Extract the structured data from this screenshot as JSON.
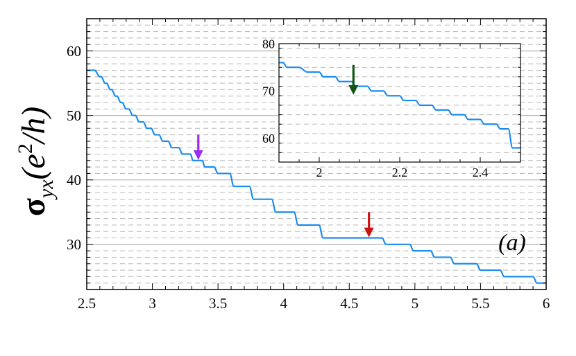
{
  "chart_data": [
    {
      "type": "line",
      "panel_label": "(a)",
      "xlabel": "",
      "ylabel": "σyx(e²/h)",
      "ylabel_parts": {
        "sigma": "σ",
        "sub": "yx",
        "open": "(e",
        "sup": "2",
        "close": "/h)"
      },
      "xlim": [
        2.5,
        6.0
      ],
      "ylim": [
        23,
        65
      ],
      "xticks": [
        2.5,
        3,
        3.5,
        4,
        4.5,
        5,
        5.5,
        6
      ],
      "xtick_labels": [
        "2.5",
        "3",
        "3.5",
        "4",
        "4.5",
        "5",
        "5.5",
        "6"
      ],
      "yticks": [
        30,
        40,
        50,
        60
      ],
      "ytick_labels": [
        "30",
        "40",
        "50",
        "60"
      ],
      "solid_gridlines": [
        30,
        40,
        50,
        60
      ],
      "dashed_gridlines_every": 1,
      "line_color": "#1a8cf0",
      "series": [
        {
          "x": [
            2.5,
            2.58,
            2.62,
            2.66,
            2.7,
            2.74,
            2.78,
            2.83,
            2.88,
            2.94,
            3.0,
            3.06,
            3.13,
            3.2,
            3.28,
            3.36,
            3.45,
            3.54,
            3.65,
            3.8,
            3.95,
            4.1,
            4.27,
            4.46,
            4.66,
            4.86,
            5.08,
            5.3,
            5.55,
            5.8,
            6.0
          ],
          "y": [
            57,
            56,
            55,
            54,
            53,
            52,
            51,
            50,
            49,
            48,
            47,
            46,
            45,
            44,
            43,
            42,
            41,
            40,
            39,
            38,
            37,
            36,
            35,
            34,
            33,
            32,
            31,
            30,
            29,
            28,
            27
          ]
        }
      ],
      "plateaus": [
        [
          2.5,
          2.56,
          57
        ],
        [
          2.6,
          2.61,
          56
        ],
        [
          2.64,
          2.65,
          55
        ],
        [
          2.68,
          2.69,
          54
        ],
        [
          2.72,
          2.73,
          53
        ],
        [
          2.76,
          2.77,
          52
        ],
        [
          2.8,
          2.82,
          51
        ],
        [
          2.85,
          2.87,
          50
        ],
        [
          2.9,
          2.93,
          49
        ],
        [
          2.96,
          2.99,
          48
        ],
        [
          3.02,
          3.05,
          47
        ],
        [
          3.08,
          3.12,
          46
        ],
        [
          3.15,
          3.2,
          45
        ],
        [
          3.23,
          3.29,
          44
        ],
        [
          3.31,
          3.38,
          43
        ],
        [
          3.4,
          3.47,
          42
        ],
        [
          3.5,
          3.59,
          41
        ],
        [
          3.62,
          3.74,
          39
        ],
        [
          3.77,
          3.91,
          37
        ],
        [
          3.94,
          4.08,
          35
        ],
        [
          4.11,
          4.27,
          33
        ],
        [
          4.3,
          4.52,
          31
        ],
        [
          4.55,
          4.75,
          31
        ],
        [
          4.78,
          4.96,
          30
        ],
        [
          4.99,
          5.12,
          29
        ],
        [
          5.15,
          5.27,
          28
        ],
        [
          5.3,
          5.47,
          27
        ],
        [
          5.5,
          5.65,
          26
        ],
        [
          5.68,
          5.9,
          25
        ],
        [
          5.93,
          6.0,
          24
        ]
      ],
      "arrows": [
        {
          "x": 3.35,
          "y_tip": 43.1,
          "y_tail": 47,
          "color": "#9b2cf5"
        },
        {
          "x": 4.65,
          "y_tip": 31.1,
          "y_tail": 35,
          "color": "#cc1111"
        }
      ]
    },
    {
      "type": "line",
      "role": "inset",
      "xlim": [
        1.9,
        2.5
      ],
      "ylim": [
        55,
        80
      ],
      "xticks": [
        2.0,
        2.2,
        2.4
      ],
      "xtick_labels": [
        "2",
        "2.2",
        "2.4"
      ],
      "yticks": [
        60,
        70,
        80
      ],
      "ytick_labels": [
        "60",
        "70",
        "80"
      ],
      "solid_gridlines": [
        60,
        70
      ],
      "dashed_gridlines_every": 2,
      "line_color": "#1a8cf0",
      "plateaus": [
        [
          1.9,
          1.91,
          76
        ],
        [
          1.92,
          1.95,
          75
        ],
        [
          1.97,
          2.0,
          74
        ],
        [
          2.01,
          2.04,
          73
        ],
        [
          2.05,
          2.08,
          72
        ],
        [
          2.09,
          2.12,
          71
        ],
        [
          2.13,
          2.16,
          70
        ],
        [
          2.17,
          2.2,
          69
        ],
        [
          2.21,
          2.24,
          68
        ],
        [
          2.25,
          2.28,
          67
        ],
        [
          2.29,
          2.32,
          66
        ],
        [
          2.33,
          2.36,
          65
        ],
        [
          2.37,
          2.4,
          64
        ],
        [
          2.41,
          2.44,
          63
        ],
        [
          2.45,
          2.47,
          62
        ],
        [
          2.48,
          2.5,
          58
        ]
      ],
      "arrows": [
        {
          "x": 2.085,
          "y_tip": 69.2,
          "y_tail": 75.5,
          "color": "#115511"
        }
      ]
    }
  ]
}
